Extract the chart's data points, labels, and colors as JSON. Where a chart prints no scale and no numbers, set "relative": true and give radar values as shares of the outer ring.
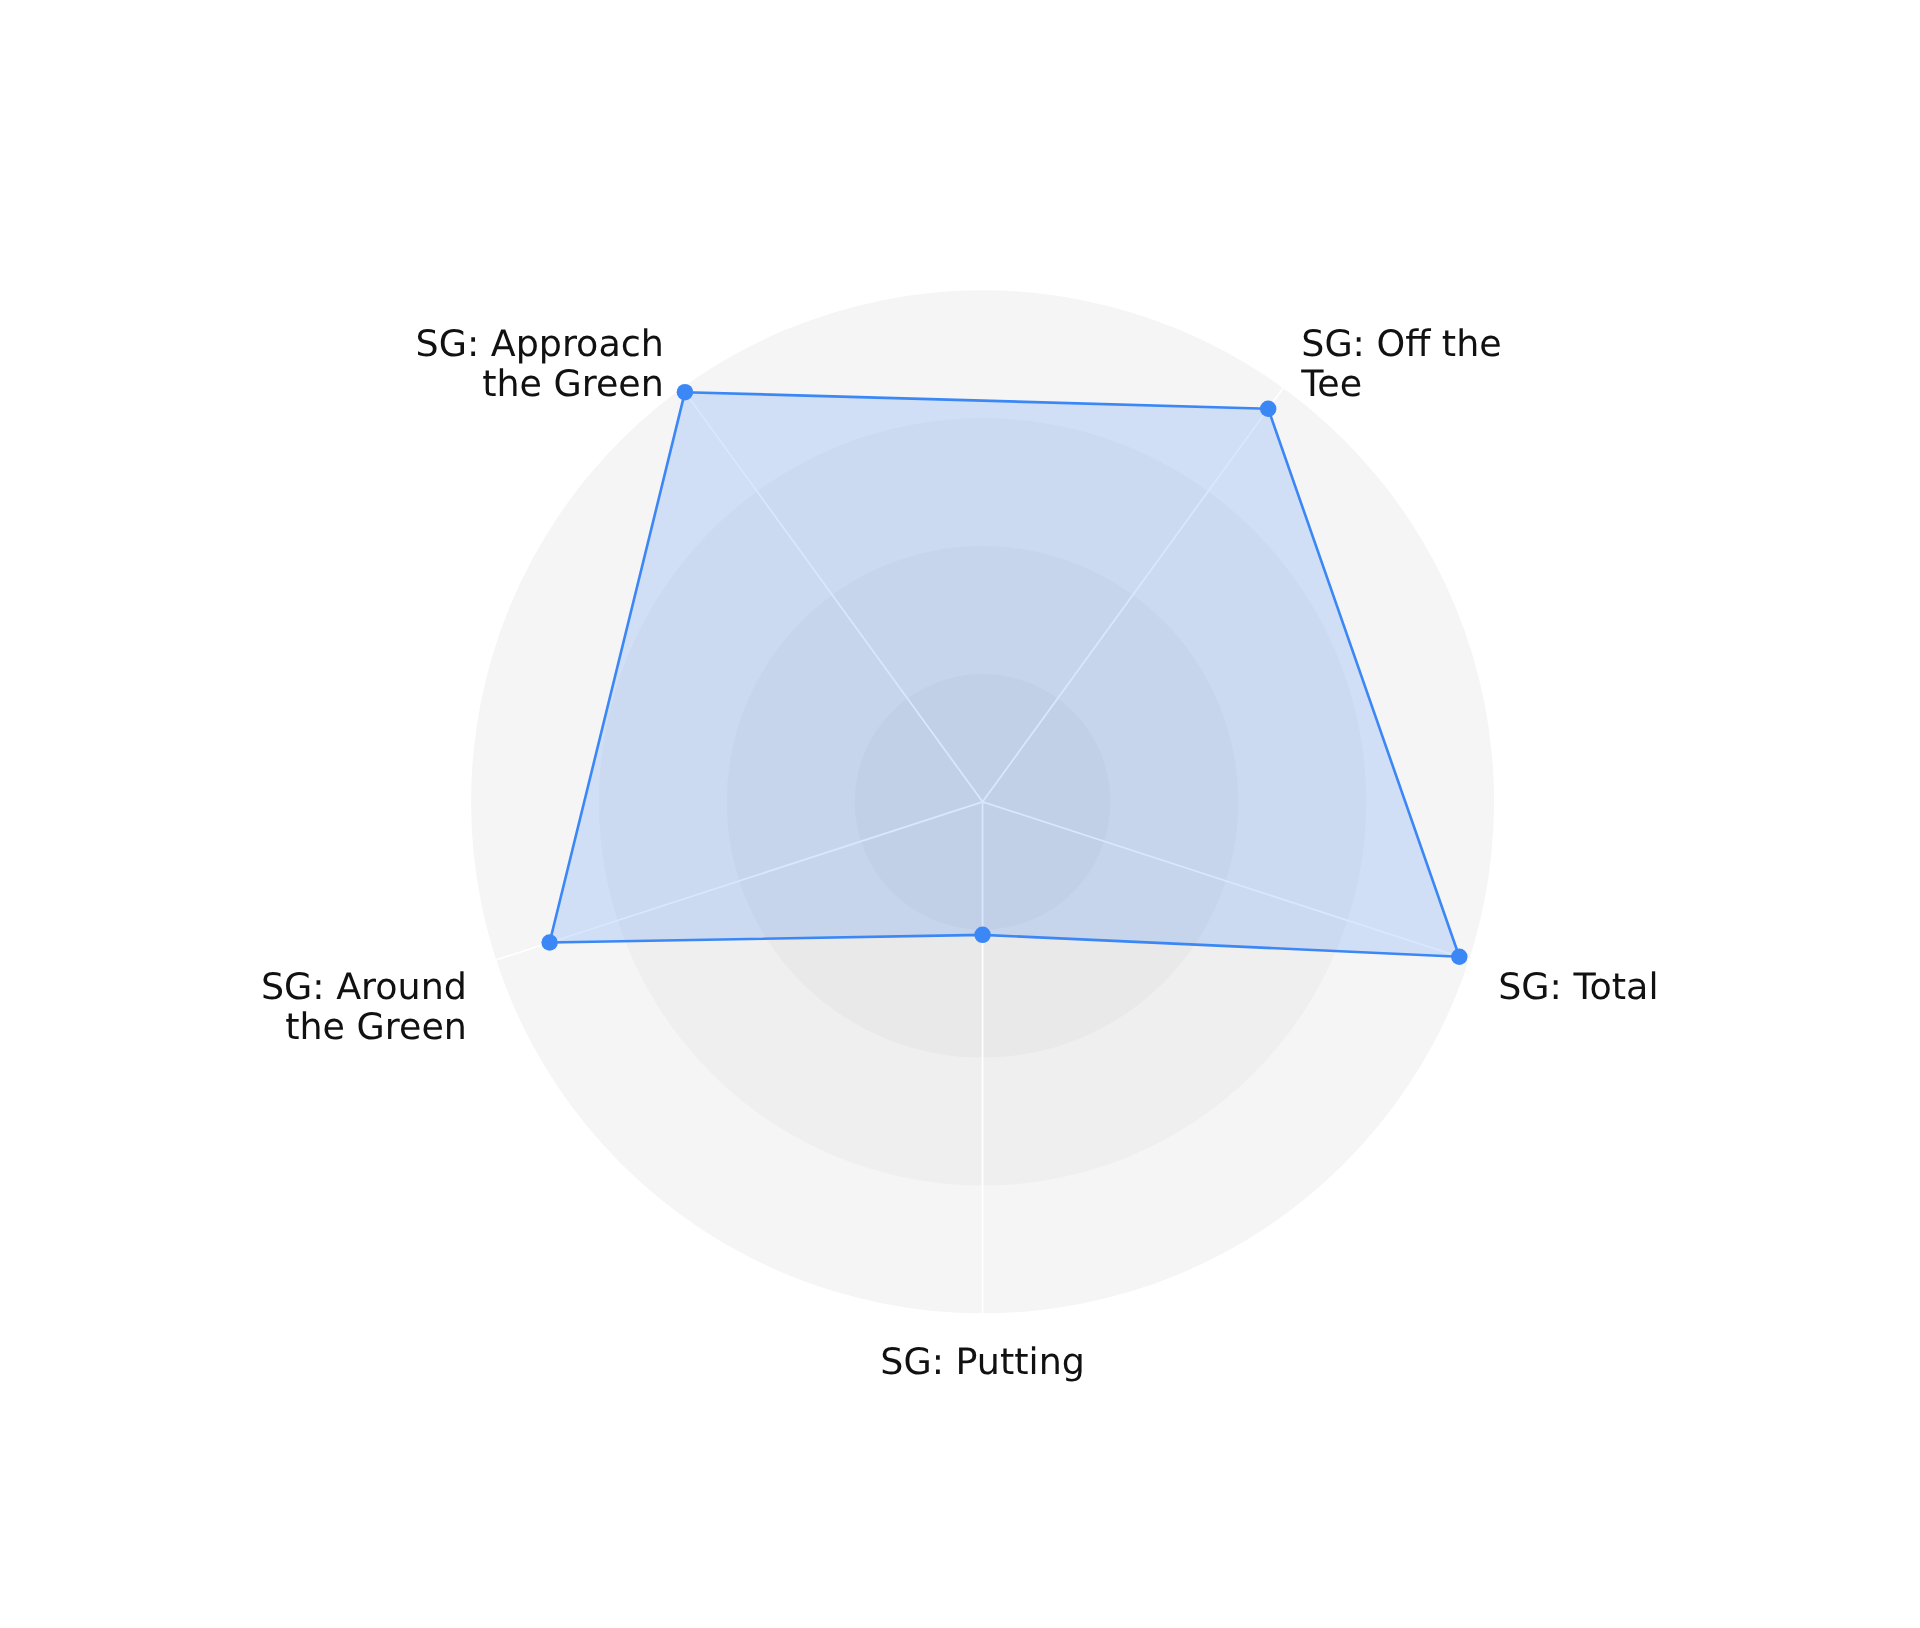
{
  "chart_data": {
    "type": "radar",
    "relative": true,
    "grid": true,
    "marker": "circle",
    "categories": [
      "SG: Off the Tee",
      "SG: Total",
      "SG: Putting",
      "SG: Around the Green",
      "SG: Approach the Green"
    ],
    "series": [
      {
        "color": "#3b87f5",
        "values": [
          0.95,
          0.98,
          0.26,
          0.89,
          0.99
        ]
      }
    ]
  }
}
